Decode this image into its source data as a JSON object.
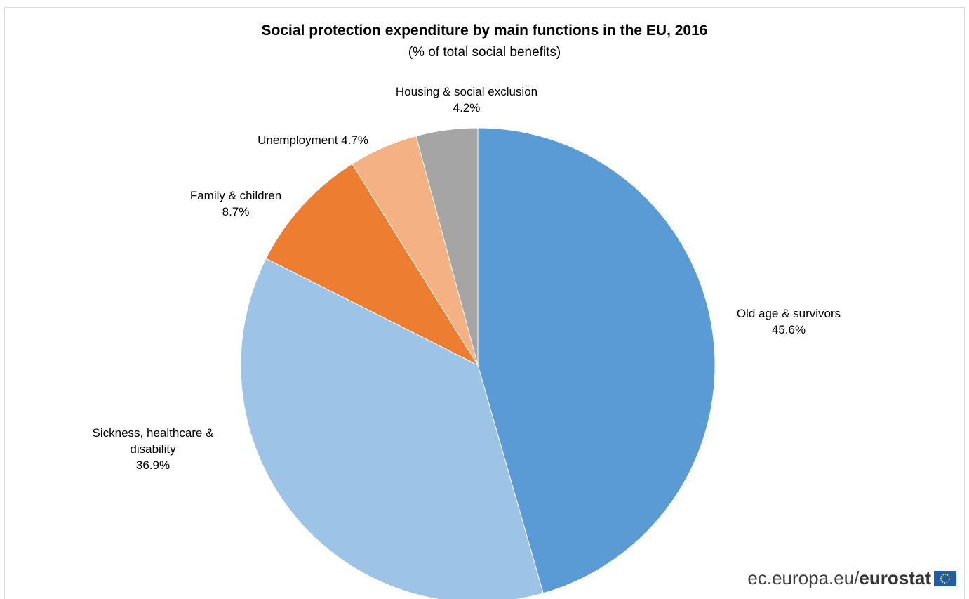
{
  "chart_data": {
    "type": "pie",
    "title": "Social protection expenditure by main functions in the EU, 2016",
    "subtitle": "(% of total social benefits)",
    "slices": [
      {
        "label_lines": [
          "Old age & survivors"
        ],
        "value": 45.6,
        "value_text": "45.6%",
        "color": "#5b9bd5"
      },
      {
        "label_lines": [
          "Sickness, healthcare &",
          "disability"
        ],
        "value": 36.9,
        "value_text": "36.9%",
        "color": "#9dc3e6"
      },
      {
        "label_lines": [
          "Family & children"
        ],
        "value": 8.7,
        "value_text": "8.7%",
        "color": "#ed7d31"
      },
      {
        "label_lines": [
          "Unemployment"
        ],
        "value": 4.7,
        "value_text": "4.7%",
        "color": "#f4b183"
      },
      {
        "label_lines": [
          "Housing & social exclusion"
        ],
        "value": 4.2,
        "value_text": "4.2%",
        "color": "#a5a5a5"
      }
    ],
    "start_angle": "12 o'clock",
    "direction": "clockwise",
    "legend": "none"
  },
  "branding": {
    "site": "ec.europa.eu/",
    "name": "eurostat"
  }
}
